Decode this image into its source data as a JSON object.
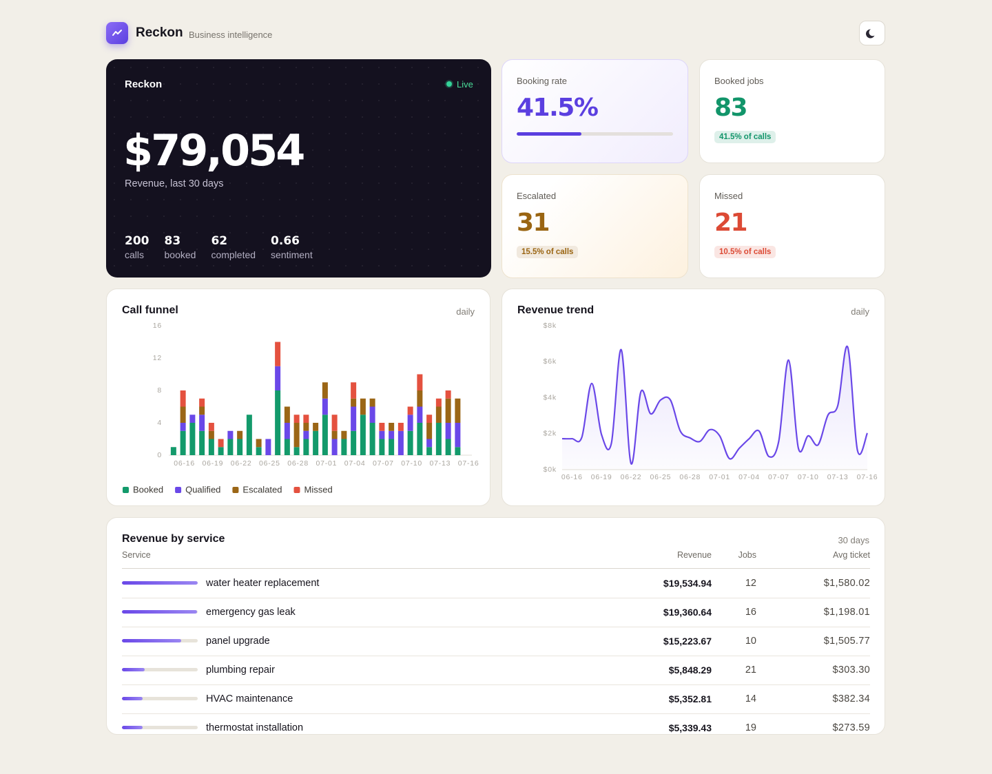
{
  "header": {
    "brand": "Reckon",
    "tagline": "Business intelligence"
  },
  "hero": {
    "title": "Reckon",
    "status": "Live",
    "value": "$79,054",
    "caption": "Revenue, last 30 days",
    "stats": [
      {
        "value": "200",
        "label": "calls"
      },
      {
        "value": "83",
        "label": "booked"
      },
      {
        "value": "62",
        "label": "completed"
      },
      {
        "value": "0.66",
        "label": "sentiment"
      }
    ]
  },
  "kpis": [
    {
      "label": "Booking rate",
      "value": 41.5,
      "value_label": "41.5%",
      "progress": true,
      "color": "#5b3fe0"
    },
    {
      "label": "Booked jobs",
      "value": "83",
      "note": "41.5% of calls",
      "color": "#12956a"
    },
    {
      "label": "Escalated",
      "value": "31",
      "note": "15.5% of calls",
      "color": "#9a6512"
    },
    {
      "label": "Missed",
      "value": "21",
      "note": "10.5% of calls",
      "color": "#dc4a35"
    }
  ],
  "chart_data": [
    {
      "type": "bar",
      "stacked": true,
      "title": "Call funnel",
      "subtitle": "daily",
      "categories": [
        null,
        "06-16",
        null,
        null,
        "06-19",
        null,
        null,
        "06-22",
        null,
        null,
        "06-25",
        null,
        null,
        "06-28",
        null,
        null,
        "07-01",
        null,
        null,
        "07-04",
        null,
        null,
        "07-07",
        null,
        null,
        "07-10",
        null,
        null,
        "07-13",
        null,
        null,
        "07-16"
      ],
      "series": [
        {
          "name": "Booked",
          "color": "#139a6b",
          "values": [
            1,
            3,
            4,
            3,
            2,
            1,
            2,
            2,
            5,
            1,
            0,
            8,
            2,
            1,
            2,
            3,
            5,
            0,
            2,
            3,
            5,
            4,
            2,
            2,
            0,
            3,
            4,
            1,
            4,
            2,
            1,
            0
          ]
        },
        {
          "name": "Qualified",
          "color": "#6a48e8",
          "values": [
            0,
            1,
            1,
            2,
            0,
            0,
            1,
            0,
            0,
            0,
            2,
            3,
            2,
            0,
            1,
            0,
            2,
            2,
            0,
            3,
            0,
            2,
            1,
            1,
            3,
            2,
            2,
            1,
            0,
            2,
            3,
            0
          ]
        },
        {
          "name": "Escalated",
          "color": "#9b6616",
          "values": [
            0,
            2,
            0,
            1,
            1,
            0,
            0,
            1,
            0,
            1,
            0,
            0,
            2,
            3,
            1,
            1,
            2,
            1,
            1,
            1,
            2,
            1,
            0,
            1,
            0,
            0,
            2,
            2,
            2,
            3,
            3,
            0
          ]
        },
        {
          "name": "Missed",
          "color": "#e4513f",
          "values": [
            0,
            2,
            0,
            1,
            1,
            1,
            0,
            0,
            0,
            0,
            0,
            3,
            0,
            1,
            1,
            0,
            0,
            2,
            0,
            2,
            0,
            0,
            1,
            0,
            1,
            1,
            2,
            1,
            1,
            1,
            0,
            0
          ]
        }
      ],
      "ylim": [
        0,
        16
      ],
      "yticks": [
        0,
        4,
        8,
        12,
        16
      ],
      "grid": false,
      "legend": "bottom"
    },
    {
      "type": "line",
      "area": true,
      "title": "Revenue trend",
      "subtitle": "daily",
      "categories": [
        null,
        "06-16",
        null,
        null,
        "06-19",
        null,
        null,
        "06-22",
        null,
        null,
        "06-25",
        null,
        null,
        "06-28",
        null,
        null,
        "07-01",
        null,
        null,
        "07-04",
        null,
        null,
        "07-07",
        null,
        null,
        "07-10",
        null,
        null,
        "07-13",
        null,
        null,
        "07-16"
      ],
      "values": [
        1720,
        1720,
        1800,
        4790,
        1950,
        1460,
        6670,
        340,
        4330,
        3100,
        3870,
        3870,
        2150,
        1760,
        1570,
        2220,
        1880,
        610,
        1190,
        1720,
        2150,
        730,
        1570,
        6090,
        1190,
        1880,
        1380,
        3030,
        3560,
        6820,
        1070,
        2030
      ],
      "color": "#6a48e8",
      "ylim": [
        0,
        8000
      ],
      "yticks": [
        {
          "value": 0,
          "label": "$0k"
        },
        {
          "value": 2000,
          "label": "$2k"
        },
        {
          "value": 4000,
          "label": "$4k"
        },
        {
          "value": 6000,
          "label": "$6k"
        },
        {
          "value": 8000,
          "label": "$8k"
        }
      ],
      "grid": false
    }
  ],
  "table": {
    "title": "Revenue by service",
    "subtitle": "30 days",
    "columns": [
      "Service",
      "Revenue",
      "Jobs",
      "Avg ticket"
    ],
    "rows": [
      {
        "service": "water heater replacement",
        "revenue": 19534.94,
        "revenue_label": "$19,534.94",
        "jobs": 12,
        "avg_ticket": "$1,580.02"
      },
      {
        "service": "emergency gas leak",
        "revenue": 19360.64,
        "revenue_label": "$19,360.64",
        "jobs": 16,
        "avg_ticket": "$1,198.01"
      },
      {
        "service": "panel upgrade",
        "revenue": 15223.67,
        "revenue_label": "$15,223.67",
        "jobs": 10,
        "avg_ticket": "$1,505.77"
      },
      {
        "service": "plumbing repair",
        "revenue": 5848.29,
        "revenue_label": "$5,848.29",
        "jobs": 21,
        "avg_ticket": "$303.30"
      },
      {
        "service": "HVAC maintenance",
        "revenue": 5352.81,
        "revenue_label": "$5,352.81",
        "jobs": 14,
        "avg_ticket": "$382.34"
      },
      {
        "service": "thermostat installation",
        "revenue": 5339.43,
        "revenue_label": "$5,339.43",
        "jobs": 19,
        "avg_ticket": "$273.59"
      }
    ]
  }
}
